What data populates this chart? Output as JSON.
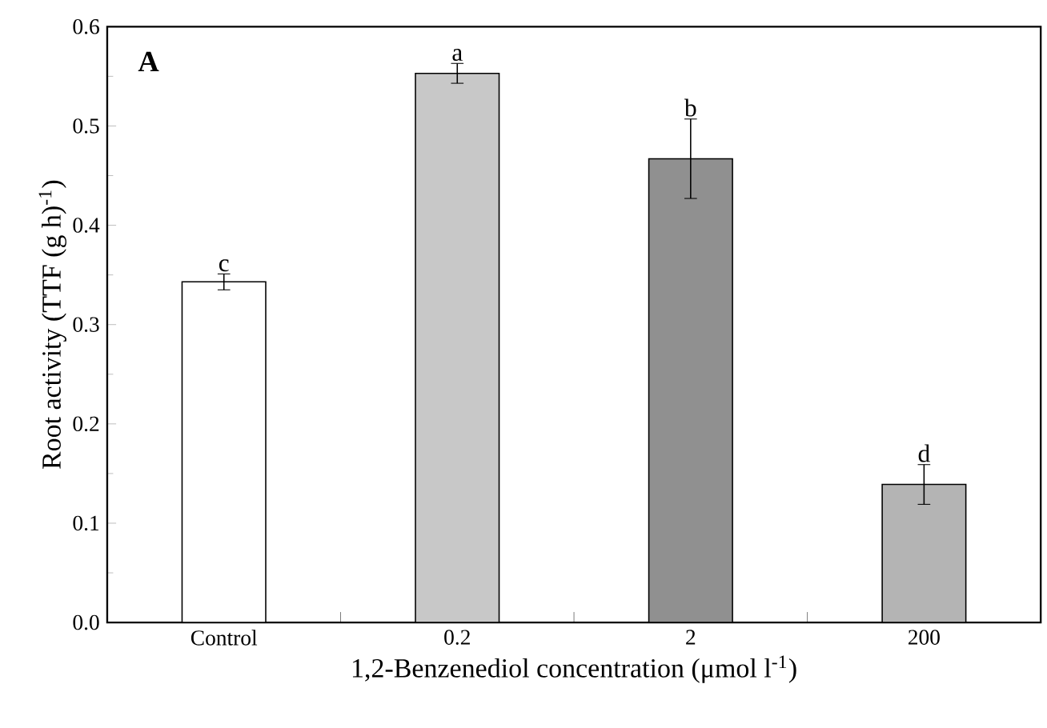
{
  "chart_data": {
    "type": "bar",
    "xlabel": "1,2-Benzenediol concentration (μmol l$^{-1}$)",
    "ylabel": "Root activity (TTF (g h)$^{-1}$)",
    "categories": [
      "Control",
      "0.2",
      "2",
      "200"
    ],
    "values": [
      0.343,
      0.553,
      0.467,
      0.139
    ],
    "errors": [
      0.008,
      0.01,
      0.04,
      0.02
    ],
    "colors": [
      "#ffffff",
      "#c8c8c8",
      "#909090",
      "#b4b4b4"
    ],
    "ylim": [
      0,
      0.6
    ],
    "yticks": [
      {
        "value": 0,
        "label": "0.0"
      },
      0.1,
      0.2,
      0.3,
      0.4,
      0.5,
      0.6
    ],
    "grid": false,
    "annotations": [
      "A",
      {
        "text": "c",
        "x": "Control",
        "y": 0.351
      },
      {
        "text": "a",
        "x": "0.2",
        "y": 0.563
      },
      {
        "text": "b",
        "x": "2",
        "y": 0.507
      },
      {
        "text": "d",
        "x": "200",
        "y": 0.159
      }
    ]
  }
}
